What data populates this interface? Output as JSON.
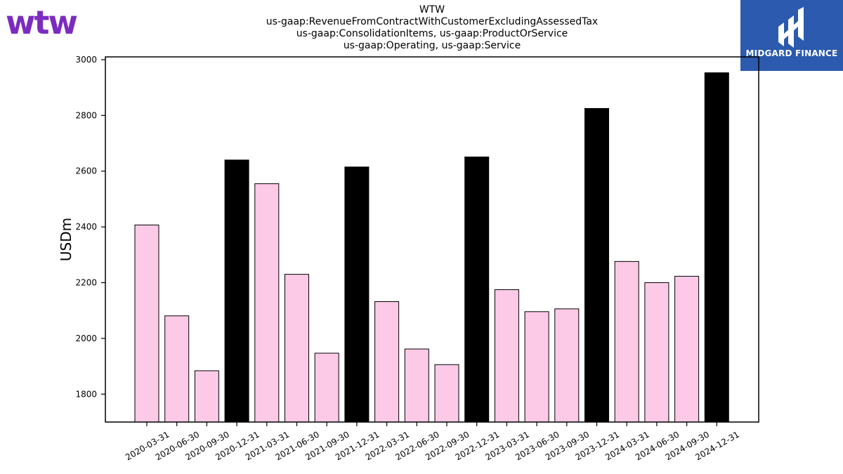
{
  "logos": {
    "left_text": "wtw",
    "right_text": "MIDGARD FINANCE"
  },
  "colors": {
    "logo_purple": "#7b2cbf",
    "logo_blue": "#2b5aae",
    "bar_pink": "#fccae6",
    "bar_highlight": "#000000"
  },
  "chart_data": {
    "type": "bar",
    "title_lines": [
      "WTW",
      "us-gaap:RevenueFromContractWithCustomerExcludingAssessedTax",
      "us-gaap:ConsolidationItems, us-gaap:ProductOrService",
      "us-gaap:Operating, us-gaap:Service"
    ],
    "ylabel": "USDm",
    "xlabel": "",
    "ylim": [
      1700,
      3010
    ],
    "yticks": [
      1800,
      2000,
      2200,
      2400,
      2600,
      2800,
      3000
    ],
    "grid": false,
    "categories": [
      "2020-03-31",
      "2020-06-30",
      "2020-09-30",
      "2020-12-31",
      "2021-03-31",
      "2021-06-30",
      "2021-09-30",
      "2021-12-31",
      "2022-03-31",
      "2022-06-30",
      "2022-09-30",
      "2022-12-31",
      "2023-03-31",
      "2023-06-30",
      "2023-09-30",
      "2023-12-31",
      "2024-03-31",
      "2024-06-30",
      "2024-09-30",
      "2024-12-31"
    ],
    "values": [
      2407,
      2081,
      1884,
      2640,
      2555,
      2230,
      1947,
      2615,
      2132,
      1962,
      1906,
      2651,
      2175,
      2096,
      2106,
      2825,
      2276,
      2200,
      2223,
      2953
    ],
    "highlight_categories": [
      "2020-12-31",
      "2021-12-31",
      "2022-12-31",
      "2023-12-31",
      "2024-12-31"
    ]
  }
}
